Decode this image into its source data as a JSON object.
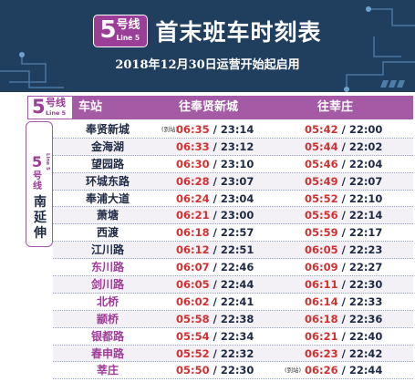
{
  "colors": {
    "header_bg": "#203f5f",
    "accent_purple": "#a45aa5",
    "line5_purple": "#9a3e98",
    "first_train_red": "#d23131",
    "text_dark": "#1f2a44",
    "station_main": "#1f2a44",
    "station_extension": "#a03b9a"
  },
  "header": {
    "line_number": "5",
    "line_name_cn": "号线",
    "line_name_en": "Line 5",
    "title": "首末班车时刻表",
    "subtitle": "2018年12月30日运营开始起启用"
  },
  "table": {
    "line_number": "5",
    "line_name_cn": "号线",
    "line_name_en": "Line 5",
    "columns": {
      "station": "车站",
      "dir1": "往奉贤新城",
      "dir2": "往莘庄"
    },
    "side_label": {
      "line_number": "5",
      "line_name_cn": "号线",
      "line_name_en": "Line 5",
      "extension": "南延伸"
    },
    "rows": [
      {
        "station": "奉贤新城",
        "ext": false,
        "note1": "(到站)",
        "first1": "06:35",
        "last1": "23:14",
        "note2": "",
        "first2": "05:42",
        "last2": "22:00"
      },
      {
        "station": "金海湖",
        "ext": false,
        "note1": "",
        "first1": "06:33",
        "last1": "23:12",
        "note2": "",
        "first2": "05:44",
        "last2": "22:02"
      },
      {
        "station": "望园路",
        "ext": false,
        "note1": "",
        "first1": "06:30",
        "last1": "23:10",
        "note2": "",
        "first2": "05:46",
        "last2": "22:04"
      },
      {
        "station": "环城东路",
        "ext": false,
        "note1": "",
        "first1": "06:28",
        "last1": "23:07",
        "note2": "",
        "first2": "05:49",
        "last2": "22:07"
      },
      {
        "station": "奉浦大道",
        "ext": false,
        "note1": "",
        "first1": "06:24",
        "last1": "23:04",
        "note2": "",
        "first2": "05:52",
        "last2": "22:10"
      },
      {
        "station": "萧塘",
        "ext": false,
        "note1": "",
        "first1": "06:21",
        "last1": "23:00",
        "note2": "",
        "first2": "05:56",
        "last2": "22:14"
      },
      {
        "station": "西渡",
        "ext": false,
        "note1": "",
        "first1": "06:18",
        "last1": "22:57",
        "note2": "",
        "first2": "05:59",
        "last2": "22:17"
      },
      {
        "station": "江川路",
        "ext": false,
        "note1": "",
        "first1": "06:12",
        "last1": "22:51",
        "note2": "",
        "first2": "06:05",
        "last2": "22:23"
      },
      {
        "station": "东川路",
        "ext": true,
        "note1": "",
        "first1": "06:07",
        "last1": "22:46",
        "note2": "",
        "first2": "06:09",
        "last2": "22:27"
      },
      {
        "station": "剑川路",
        "ext": true,
        "note1": "",
        "first1": "06:05",
        "last1": "22:44",
        "note2": "",
        "first2": "06:11",
        "last2": "22:30"
      },
      {
        "station": "北桥",
        "ext": true,
        "note1": "",
        "first1": "06:02",
        "last1": "22:41",
        "note2": "",
        "first2": "06:14",
        "last2": "22:33"
      },
      {
        "station": "颛桥",
        "ext": true,
        "note1": "",
        "first1": "05:58",
        "last1": "22:38",
        "note2": "",
        "first2": "06:18",
        "last2": "22:36"
      },
      {
        "station": "银都路",
        "ext": true,
        "note1": "",
        "first1": "05:54",
        "last1": "22:34",
        "note2": "",
        "first2": "06:21",
        "last2": "22:40"
      },
      {
        "station": "春申路",
        "ext": true,
        "note1": "",
        "first1": "05:52",
        "last1": "22:32",
        "note2": "",
        "first2": "06:23",
        "last2": "22:42"
      },
      {
        "station": "莘庄",
        "ext": true,
        "note1": "",
        "first1": "05:50",
        "last1": "22:30",
        "note2": "(到站)",
        "first2": "06:26",
        "last2": "22:44"
      }
    ]
  }
}
